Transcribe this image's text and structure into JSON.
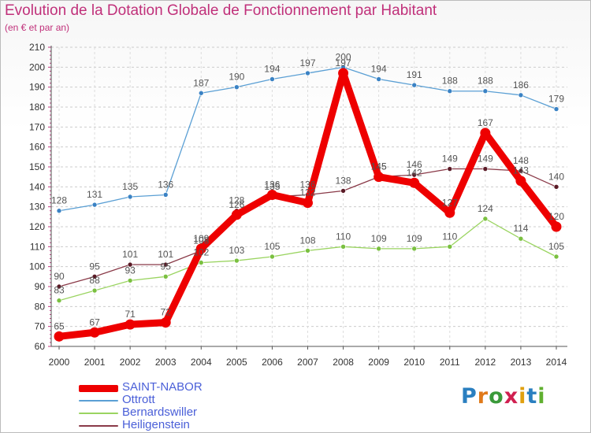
{
  "title": "Evolution de la Dotation Globale de Fonctionnement par Habitant",
  "subtitle": "(en € et par an)",
  "logo": {
    "letters": [
      "P",
      "r",
      "o",
      "x",
      "i",
      "t",
      "i"
    ],
    "colors": [
      "#2a7fc0",
      "#e07a1a",
      "#3a9a3a",
      "#d02050",
      "#e0a010",
      "#2a7fc0",
      "#60b030"
    ]
  },
  "chart_data": {
    "type": "line",
    "title": "Evolution de la Dotation Globale de Fonctionnement par Habitant",
    "subtitle": "(en € et par an)",
    "xlabel": "",
    "ylabel": "",
    "categories": [
      "2000",
      "2001",
      "2002",
      "2003",
      "2004",
      "2005",
      "2006",
      "2007",
      "2008",
      "2009",
      "2010",
      "2011",
      "2012",
      "2013",
      "2014"
    ],
    "ylim": [
      60,
      210
    ],
    "yticks": [
      60,
      70,
      80,
      90,
      100,
      110,
      120,
      130,
      140,
      150,
      160,
      170,
      180,
      190,
      200,
      210
    ],
    "grid": "horizontal dashed",
    "legend": "bottom-left",
    "series": [
      {
        "name": "Ottrott",
        "color": "#5a9fd4",
        "marker": "#3a82c4",
        "thick": false,
        "values": [
          128,
          131,
          135,
          136,
          187,
          190,
          194,
          197,
          200,
          194,
          191,
          188,
          188,
          186,
          179
        ]
      },
      {
        "name": "Bernardswiller",
        "color": "#9ad460",
        "marker": "#7ac040",
        "thick": false,
        "values": [
          83,
          88,
          93,
          95,
          102,
          103,
          105,
          108,
          110,
          109,
          109,
          110,
          124,
          114,
          105
        ]
      },
      {
        "name": "Heiligenstein",
        "color": "#8a3a48",
        "marker": "#5a1a26",
        "thick": false,
        "values": [
          90,
          95,
          101,
          101,
          108,
          128,
          135,
          136,
          138,
          145,
          146,
          149,
          149,
          148,
          140
        ]
      },
      {
        "name": "SAINT-NABOR",
        "color": "#ee0000",
        "marker": "#ee0000",
        "thick": true,
        "values": [
          65,
          67,
          71,
          72,
          109,
          126,
          136,
          132,
          197,
          145,
          142,
          127,
          167,
          143,
          120
        ]
      }
    ],
    "legend_order": [
      "SAINT-NABOR",
      "Ottrott",
      "Bernardswiller",
      "Heiligenstein"
    ],
    "legend_label_color": "#4a5fd8"
  }
}
